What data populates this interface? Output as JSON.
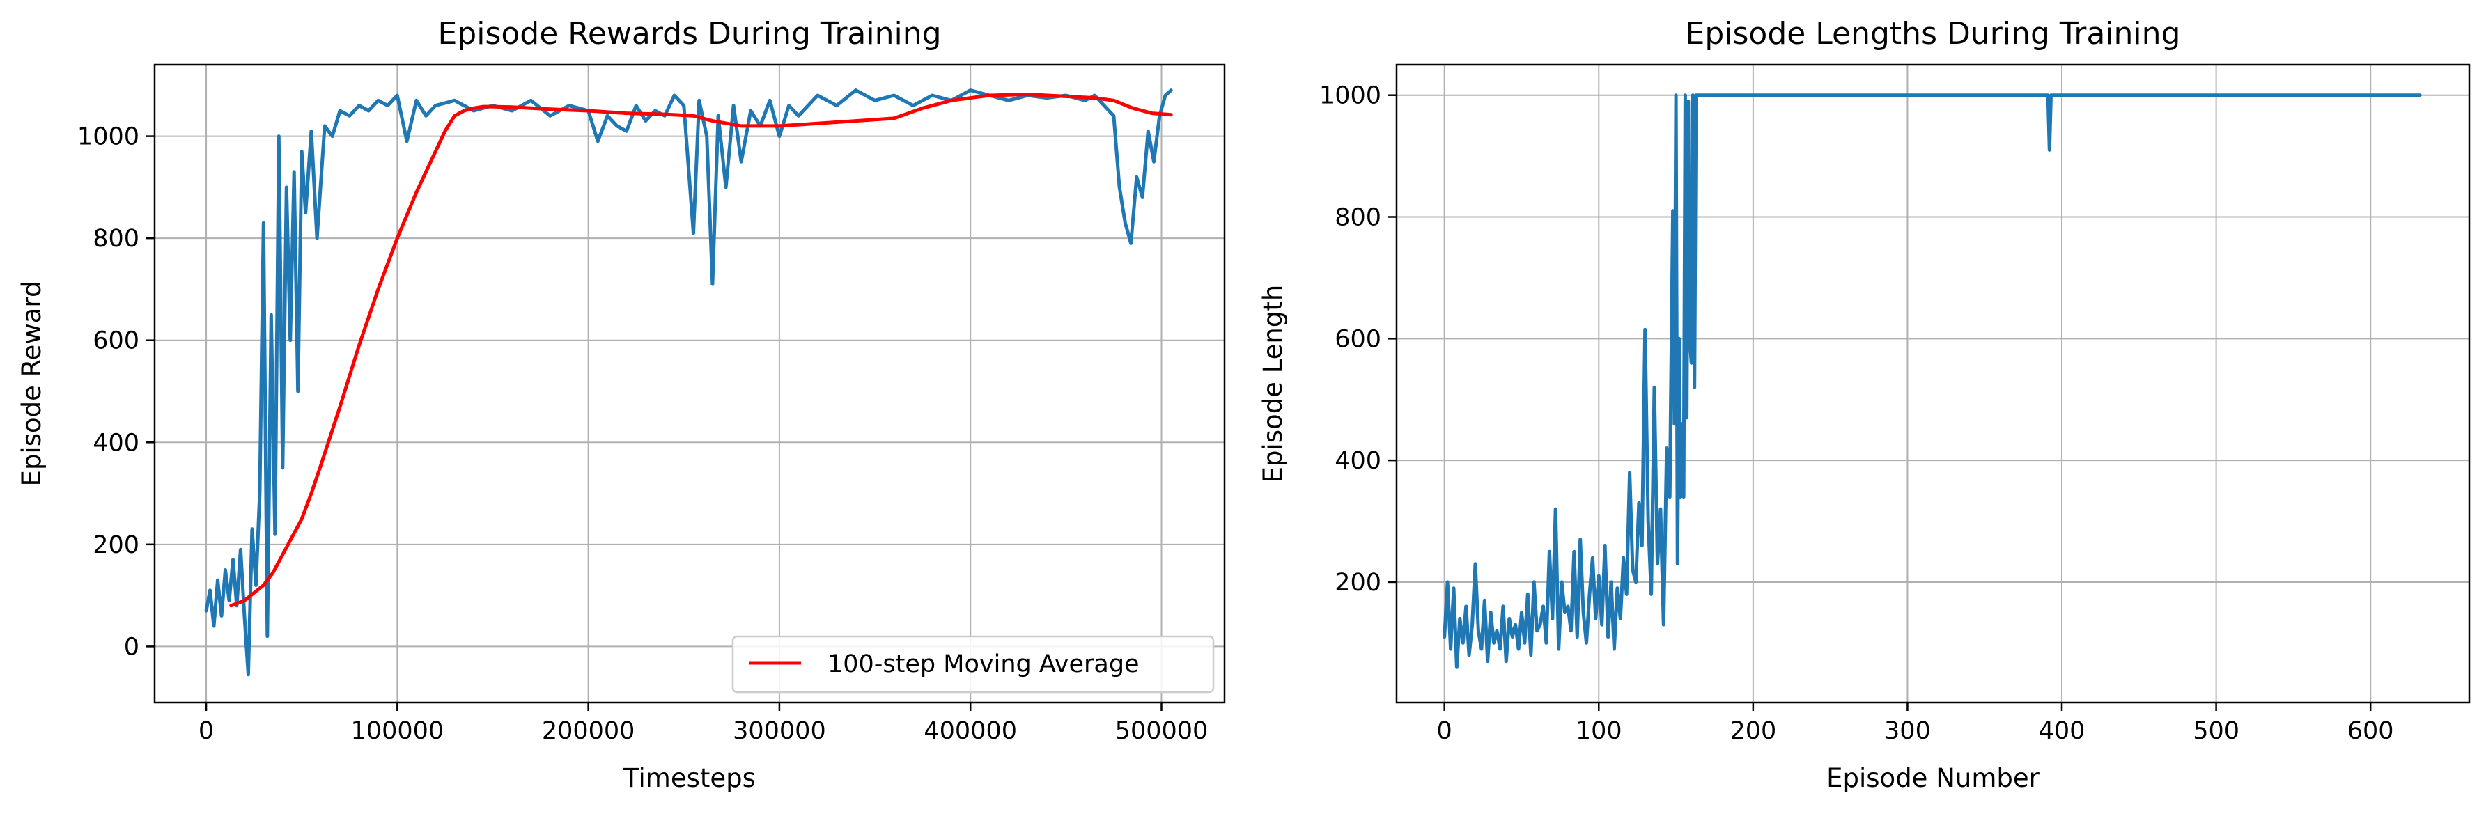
{
  "chart_data": [
    {
      "type": "line",
      "title": "Episode Rewards During Training",
      "xlabel": "Timesteps",
      "ylabel": "Episode Reward",
      "xlim": [
        -27000,
        533000
      ],
      "ylim": [
        -110,
        1140
      ],
      "xticks": [
        0,
        100000,
        200000,
        300000,
        400000,
        500000
      ],
      "yticks": [
        0,
        200,
        400,
        600,
        800,
        1000
      ],
      "grid": true,
      "legend_placement": "lower-right",
      "series": [
        {
          "color": "#1f77b4",
          "x": [
            0,
            2000,
            4000,
            6000,
            8000,
            10000,
            12000,
            14000,
            16000,
            18000,
            20000,
            22000,
            24000,
            26000,
            28000,
            30000,
            32000,
            34000,
            36000,
            38000,
            40000,
            42000,
            44000,
            46000,
            48000,
            50000,
            52000,
            55000,
            58000,
            62000,
            66000,
            70000,
            75000,
            80000,
            85000,
            90000,
            95000,
            100000,
            105000,
            110000,
            115000,
            120000,
            130000,
            140000,
            150000,
            160000,
            170000,
            180000,
            190000,
            200000,
            205000,
            210000,
            215000,
            220000,
            225000,
            230000,
            235000,
            240000,
            245000,
            250000,
            255000,
            258000,
            262000,
            265000,
            268000,
            272000,
            276000,
            280000,
            285000,
            290000,
            295000,
            300000,
            305000,
            310000,
            320000,
            330000,
            340000,
            350000,
            360000,
            370000,
            380000,
            390000,
            400000,
            410000,
            420000,
            430000,
            440000,
            450000,
            460000,
            465000,
            470000,
            475000,
            478000,
            481000,
            484000,
            487000,
            490000,
            493000,
            496000,
            499000,
            502000,
            505000
          ],
          "y": [
            70,
            110,
            40,
            130,
            60,
            150,
            90,
            170,
            80,
            190,
            60,
            -55,
            230,
            120,
            300,
            830,
            20,
            650,
            220,
            1000,
            350,
            900,
            600,
            930,
            500,
            970,
            850,
            1010,
            800,
            1020,
            1000,
            1050,
            1040,
            1060,
            1050,
            1070,
            1060,
            1080,
            990,
            1070,
            1040,
            1060,
            1070,
            1050,
            1060,
            1050,
            1070,
            1040,
            1060,
            1050,
            990,
            1040,
            1020,
            1010,
            1060,
            1030,
            1050,
            1040,
            1080,
            1060,
            810,
            1070,
            1000,
            710,
            1040,
            900,
            1060,
            950,
            1050,
            1020,
            1070,
            1000,
            1060,
            1040,
            1080,
            1060,
            1090,
            1070,
            1080,
            1060,
            1080,
            1070,
            1090,
            1080,
            1070,
            1080,
            1075,
            1080,
            1070,
            1080,
            1060,
            1040,
            900,
            830,
            790,
            920,
            880,
            1010,
            950,
            1040,
            1080,
            1090
          ]
        },
        {
          "name": "100-step Moving Average",
          "color": "#ff0000",
          "x": [
            13000,
            20000,
            25000,
            30000,
            35000,
            40000,
            45000,
            50000,
            55000,
            60000,
            70000,
            80000,
            90000,
            100000,
            110000,
            120000,
            125000,
            130000,
            135000,
            140000,
            145000,
            150000,
            160000,
            170000,
            180000,
            200000,
            220000,
            240000,
            255000,
            265000,
            280000,
            300000,
            320000,
            340000,
            360000,
            375000,
            390000,
            410000,
            430000,
            450000,
            465000,
            475000,
            485000,
            495000,
            505000
          ],
          "y": [
            80,
            90,
            105,
            120,
            145,
            180,
            215,
            250,
            300,
            355,
            470,
            590,
            700,
            800,
            890,
            970,
            1010,
            1040,
            1050,
            1055,
            1058,
            1058,
            1057,
            1055,
            1053,
            1050,
            1045,
            1043,
            1040,
            1030,
            1020,
            1020,
            1025,
            1030,
            1035,
            1055,
            1070,
            1080,
            1082,
            1078,
            1075,
            1070,
            1055,
            1045,
            1042
          ]
        }
      ]
    },
    {
      "type": "line",
      "title": "Episode Lengths During Training",
      "xlabel": "Episode Number",
      "ylabel": "Episode Length",
      "xlim": [
        -31,
        664
      ],
      "ylim": [
        2,
        1050
      ],
      "xticks": [
        0,
        100,
        200,
        300,
        400,
        500,
        600
      ],
      "yticks": [
        200,
        400,
        600,
        800,
        1000
      ],
      "grid": true,
      "series": [
        {
          "color": "#1f77b4",
          "x": [
            0,
            2,
            4,
            6,
            8,
            10,
            12,
            14,
            16,
            18,
            20,
            22,
            24,
            26,
            28,
            30,
            32,
            34,
            36,
            38,
            40,
            42,
            44,
            46,
            48,
            50,
            52,
            54,
            56,
            58,
            60,
            62,
            64,
            66,
            68,
            70,
            72,
            74,
            76,
            78,
            80,
            82,
            84,
            86,
            88,
            90,
            92,
            94,
            96,
            98,
            100,
            102,
            104,
            106,
            108,
            110,
            112,
            114,
            116,
            118,
            120,
            122,
            124,
            126,
            128,
            130,
            132,
            134,
            136,
            138,
            140,
            142,
            144,
            146,
            148,
            149,
            150,
            151,
            152,
            153,
            154,
            155,
            156,
            157,
            158,
            159,
            160,
            161,
            162,
            163,
            164,
            165,
            170,
            200,
            300,
            390,
            391,
            392,
            393,
            394,
            400,
            500,
            600,
            632
          ],
          "y": [
            110,
            200,
            90,
            190,
            60,
            140,
            100,
            160,
            80,
            130,
            230,
            120,
            90,
            170,
            70,
            150,
            100,
            120,
            90,
            160,
            70,
            140,
            110,
            130,
            90,
            150,
            100,
            180,
            80,
            200,
            120,
            130,
            160,
            100,
            250,
            140,
            320,
            90,
            200,
            150,
            160,
            120,
            250,
            110,
            270,
            150,
            100,
            180,
            240,
            140,
            210,
            130,
            260,
            110,
            200,
            90,
            190,
            140,
            240,
            180,
            380,
            220,
            200,
            330,
            260,
            615,
            300,
            180,
            520,
            230,
            320,
            130,
            420,
            340,
            810,
            460,
            1000,
            230,
            600,
            340,
            460,
            340,
            1000,
            470,
            990,
            600,
            560,
            1000,
            520,
            1000,
            1000,
            1000,
            1000,
            1000,
            1000,
            1000,
            1000,
            910,
            1000,
            1000,
            1000,
            1000,
            1000,
            1000
          ]
        }
      ]
    }
  ]
}
